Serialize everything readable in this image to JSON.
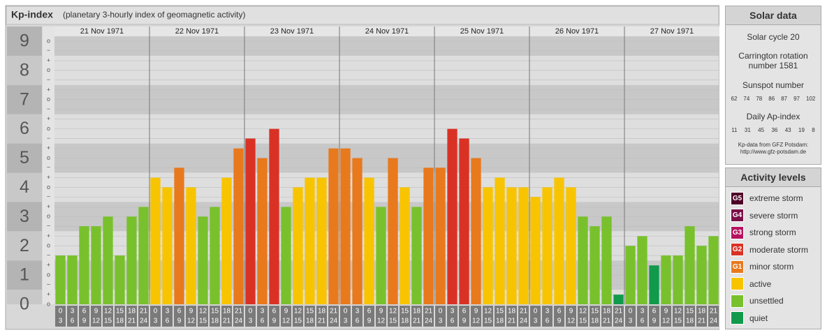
{
  "chart_data": {
    "type": "bar",
    "title": "Kp-index",
    "subtitle": "(planetary 3-hourly index of geomagnetic activity)",
    "days": [
      "21 Nov 1971",
      "22 Nov 1971",
      "23 Nov 1971",
      "24 Nov 1971",
      "25 Nov 1971",
      "26 Nov 1971",
      "27 Nov 1971"
    ],
    "hour_labels": [
      [
        "0",
        "3"
      ],
      [
        "3",
        "6"
      ],
      [
        "6",
        "9"
      ],
      [
        "9",
        "12"
      ],
      [
        "12",
        "15"
      ],
      [
        "15",
        "18"
      ],
      [
        "18",
        "21"
      ],
      [
        "21",
        "24"
      ]
    ],
    "values": [
      1.67,
      1.67,
      2.67,
      2.67,
      3,
      1.67,
      3,
      3.33,
      4.33,
      4,
      4.67,
      4,
      3,
      3.33,
      4.33,
      5.33,
      5.67,
      5,
      6,
      3.33,
      4,
      4.33,
      4.33,
      5.33,
      5.33,
      5,
      4.33,
      3.33,
      5,
      4,
      3.33,
      4.67,
      4.67,
      6,
      5.67,
      5,
      4,
      4.33,
      4,
      4,
      3.67,
      4,
      4.33,
      4,
      3,
      2.67,
      3,
      0.33,
      2,
      2.33,
      1.33,
      1.67,
      1.67,
      2.67,
      2,
      2.33
    ],
    "colors": [
      "#78c12c",
      "#78c12c",
      "#78c12c",
      "#78c12c",
      "#78c12c",
      "#78c12c",
      "#78c12c",
      "#78c12c",
      "#f8c400",
      "#f8c400",
      "#e8791d",
      "#f8c400",
      "#78c12c",
      "#78c12c",
      "#f8c400",
      "#e8791d",
      "#d93225",
      "#e8791d",
      "#d93225",
      "#78c12c",
      "#f8c400",
      "#f8c400",
      "#f8c400",
      "#e8791d",
      "#e8791d",
      "#e8791d",
      "#f8c400",
      "#78c12c",
      "#e8791d",
      "#f8c400",
      "#78c12c",
      "#e8791d",
      "#e8791d",
      "#d93225",
      "#d93225",
      "#e8791d",
      "#f8c400",
      "#f8c400",
      "#f8c400",
      "#f8c400",
      "#f8c400",
      "#f8c400",
      "#f8c400",
      "#f8c400",
      "#78c12c",
      "#78c12c",
      "#78c12c",
      "#119a4b",
      "#78c12c",
      "#78c12c",
      "#119a4b",
      "#78c12c",
      "#78c12c",
      "#78c12c",
      "#78c12c",
      "#78c12c"
    ],
    "ylim": [
      0,
      9.5
    ],
    "yticks": [
      0,
      1,
      2,
      3,
      4,
      5,
      6,
      7,
      8,
      9
    ],
    "minor_ticks": [
      {
        "value": 0,
        "label": "o"
      },
      {
        "value": 0.33,
        "label": "+"
      },
      {
        "value": 0.67,
        "label": "−"
      },
      {
        "value": 1,
        "label": "o"
      },
      {
        "value": 1.33,
        "label": "+"
      },
      {
        "value": 1.67,
        "label": "−"
      },
      {
        "value": 2,
        "label": "o"
      },
      {
        "value": 2.33,
        "label": "+"
      },
      {
        "value": 2.67,
        "label": "−"
      },
      {
        "value": 3,
        "label": "o"
      },
      {
        "value": 3.33,
        "label": "+"
      },
      {
        "value": 3.67,
        "label": "−"
      },
      {
        "value": 4,
        "label": "o"
      },
      {
        "value": 4.33,
        "label": "+"
      },
      {
        "value": 4.67,
        "label": "−"
      },
      {
        "value": 5,
        "label": "o"
      },
      {
        "value": 5.33,
        "label": "+"
      },
      {
        "value": 5.67,
        "label": "−"
      },
      {
        "value": 6,
        "label": "o"
      },
      {
        "value": 6.33,
        "label": "+"
      },
      {
        "value": 6.67,
        "label": "−"
      },
      {
        "value": 7,
        "label": "o"
      },
      {
        "value": 7.33,
        "label": "+"
      },
      {
        "value": 7.67,
        "label": "−"
      },
      {
        "value": 8,
        "label": "o"
      },
      {
        "value": 8.33,
        "label": "+"
      },
      {
        "value": 8.67,
        "label": "−"
      },
      {
        "value": 9,
        "label": "o"
      }
    ]
  },
  "solar_data": {
    "title": "Solar data",
    "cycle": "Solar cycle 20",
    "carrington": "Carrington rotation number 1581",
    "sunspot_title": "Sunspot number",
    "sunspot": [
      62,
      74,
      78,
      86,
      87,
      97,
      102
    ],
    "ap_title": "Daily Ap-index",
    "ap": [
      11,
      31,
      45,
      36,
      43,
      19,
      8
    ],
    "source": "Kp-data from GFZ Potsdam:",
    "url": "http://www.gfz-potsdam.de"
  },
  "activity_levels": {
    "title": "Activity levels",
    "levels": [
      {
        "badge": "G5",
        "name": "extreme storm",
        "color": "#4d0026"
      },
      {
        "badge": "G4",
        "name": "severe storm",
        "color": "#7b1048"
      },
      {
        "badge": "G3",
        "name": "strong storm",
        "color": "#b5135f"
      },
      {
        "badge": "G2",
        "name": "moderate storm",
        "color": "#d93225"
      },
      {
        "badge": "G1",
        "name": "minor storm",
        "color": "#e8791d"
      },
      {
        "name": "active",
        "color": "#f8c400"
      },
      {
        "name": "unsettled",
        "color": "#78c12c"
      },
      {
        "name": "quiet",
        "color": "#119a4b"
      }
    ]
  }
}
